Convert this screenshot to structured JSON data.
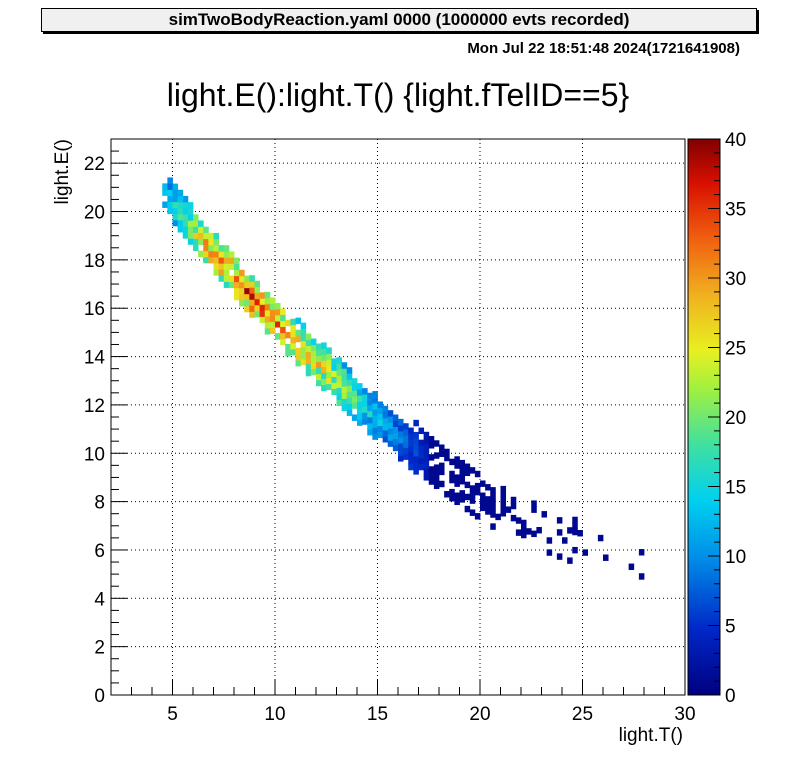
{
  "header": {
    "title_box": "simTwoBodyReaction.yaml  0000 (1000000 evts recorded)",
    "date": "Mon Jul 22 18:51:48 2024(1721641908)"
  },
  "chart_data": {
    "type": "heatmap",
    "title": "light.E():light.T() {light.fTelID==5}",
    "xlabel": "light.T()",
    "ylabel": "light.E()",
    "xlim": [
      2,
      30
    ],
    "ylim": [
      0,
      23
    ],
    "xticks": [
      "5",
      "10",
      "15",
      "20",
      "25",
      "30"
    ],
    "yticks": [
      "0",
      "2",
      "4",
      "6",
      "8",
      "10",
      "12",
      "14",
      "16",
      "18",
      "20",
      "22"
    ],
    "colorbar": {
      "range": [
        0,
        40
      ],
      "ticks": [
        "0",
        "5",
        "10",
        "15",
        "20",
        "25",
        "30",
        "35",
        "40"
      ]
    },
    "grid": true,
    "band": {
      "description_points": [
        {
          "T": 4.5,
          "E": 20.8,
          "count": 12
        },
        {
          "T": 5.5,
          "E": 19.8,
          "count": 18
        },
        {
          "T": 6.5,
          "E": 18.8,
          "count": 28
        },
        {
          "T": 7.5,
          "E": 17.8,
          "count": 30
        },
        {
          "T": 8.5,
          "E": 16.8,
          "count": 32
        },
        {
          "T": 9.5,
          "E": 15.9,
          "count": 33
        },
        {
          "T": 10.5,
          "E": 15.0,
          "count": 30
        },
        {
          "T": 11.5,
          "E": 14.2,
          "count": 27
        },
        {
          "T": 12.5,
          "E": 13.4,
          "count": 24
        },
        {
          "T": 13.5,
          "E": 12.6,
          "count": 20
        },
        {
          "T": 14.5,
          "E": 11.8,
          "count": 14
        },
        {
          "T": 15.5,
          "E": 11.1,
          "count": 11
        },
        {
          "T": 16.5,
          "E": 10.4,
          "count": 7
        },
        {
          "T": 17.5,
          "E": 9.7,
          "count": 4
        },
        {
          "T": 18.5,
          "E": 9.0,
          "count": 2
        },
        {
          "T": 19.5,
          "E": 8.4,
          "count": 1
        },
        {
          "T": 20.5,
          "E": 7.8,
          "count": 1
        },
        {
          "T": 21.5,
          "E": 7.4,
          "count": 1
        },
        {
          "T": 23.0,
          "E": 6.8,
          "count": 1
        },
        {
          "T": 24.5,
          "E": 6.3,
          "count": 1
        },
        {
          "T": 26.0,
          "E": 6.0,
          "count": 1
        },
        {
          "T": 28.0,
          "E": 5.4,
          "count": 1
        }
      ]
    }
  }
}
